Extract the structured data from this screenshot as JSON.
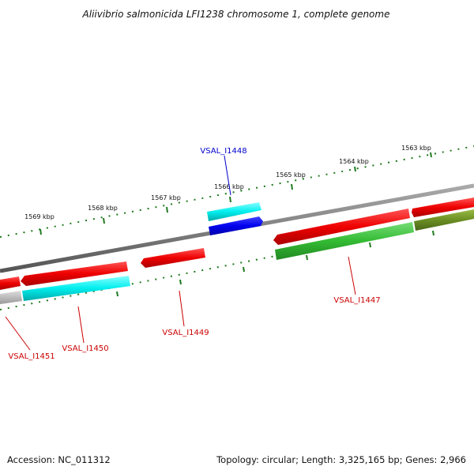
{
  "title": "Aliivibrio salmonicida LFI1238 chromosome 1, complete genome",
  "footer": {
    "accession": "Accession: NC_011312",
    "topology": "Topology: circular; Length: 3,325,165 bp; Genes: 2,966"
  },
  "ticks": {
    "labels": [
      "1563 kbp",
      "1564 kbp",
      "1565 kbp",
      "1566 kbp",
      "1567 kbp",
      "1568 kbp",
      "1569 kbp"
    ],
    "color": "#1f7a1f"
  },
  "genes": [
    {
      "name": "VSAL_I1448",
      "color": "#0000cc"
    },
    {
      "name": "VSAL_I1447",
      "color": "#cc0000"
    },
    {
      "name": "VSAL_I1449",
      "color": "#cc0000"
    },
    {
      "name": "VSAL_I1450",
      "color": "#cc0000"
    },
    {
      "name": "VSAL_I1451",
      "color": "#cc0000"
    }
  ],
  "colors": {
    "backbone": "#808080",
    "cds_red": "#ee0000",
    "cds_blue": "#0000ee",
    "cds_cyan": "#00eeee",
    "cds_green": "#33bb33",
    "cds_olive": "#6b8e23",
    "cds_gray": "#bbbbbb"
  }
}
